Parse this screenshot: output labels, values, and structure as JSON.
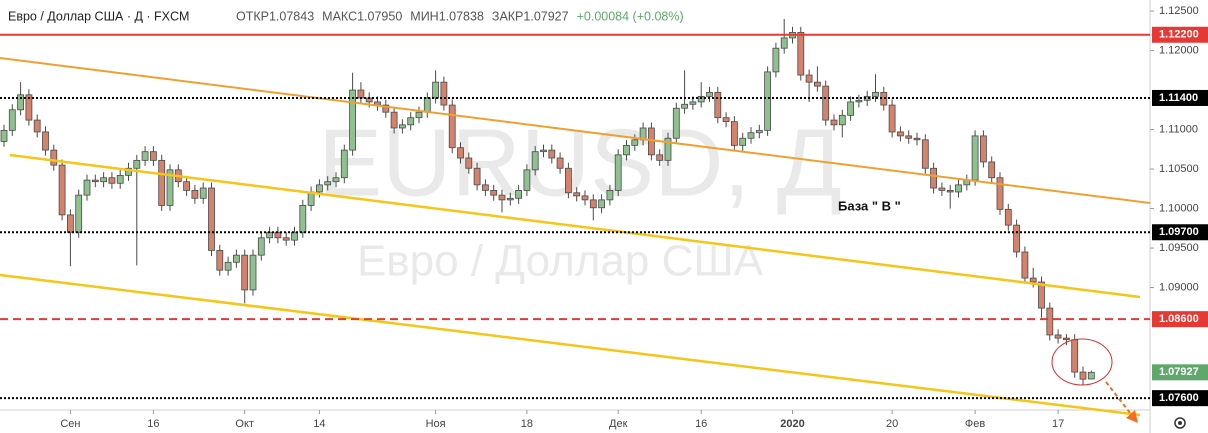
{
  "header": {
    "title": "Евро / Доллар США · Д · FXCM",
    "items": [
      "ОТКР1.07843",
      "МАКС1.07950",
      "МИН1.07838",
      "ЗАКР1.07927",
      "+0.00084 (+0.08%)"
    ]
  },
  "chart_data": {
    "type": "candlestick",
    "watermark": [
      "EURUSD, Д",
      "Евро / Доллар США"
    ],
    "annotation": "База  \" В \"",
    "up_color": "#8fc08f",
    "down_color": "#d4826c",
    "ylim": [
      1.0745,
      1.1264
    ],
    "yticks": [
      {
        "value": 1.125,
        "label": "1.12500"
      },
      {
        "value": 1.12,
        "label": "1.12000"
      },
      {
        "value": 1.11,
        "label": "1.11000"
      },
      {
        "value": 1.105,
        "label": "1.10500"
      },
      {
        "value": 1.1,
        "label": "1.10000"
      },
      {
        "value": 1.095,
        "label": "1.09500"
      },
      {
        "value": 1.09,
        "label": "1.09000"
      }
    ],
    "levels": [
      {
        "value": 1.122,
        "label": "1.12200",
        "color": "#e53935",
        "style": "solid"
      },
      {
        "value": 1.114,
        "label": "1.11400",
        "color": "#000000",
        "style": "dotted"
      },
      {
        "value": 1.097,
        "label": "1.09700",
        "color": "#000000",
        "style": "dotted"
      },
      {
        "value": 1.086,
        "label": "1.08600",
        "color": "#e53935",
        "style": "dashed"
      },
      {
        "value": 1.076,
        "label": "1.07600",
        "color": "#000000",
        "style": "dotted"
      }
    ],
    "last": {
      "value": 1.07927,
      "label": "1.07927",
      "color": "#5fa86b"
    },
    "categories": [
      null,
      null,
      null,
      null,
      null,
      null,
      null,
      null,
      "Сен",
      null,
      null,
      null,
      null,
      null,
      null,
      null,
      null,
      null,
      "16",
      null,
      null,
      null,
      null,
      null,
      null,
      null,
      null,
      null,
      null,
      "Окт",
      null,
      null,
      null,
      null,
      null,
      null,
      null,
      null,
      "14",
      null,
      null,
      null,
      null,
      null,
      null,
      null,
      null,
      null,
      null,
      null,
      null,
      null,
      "Ноя",
      null,
      null,
      null,
      null,
      null,
      null,
      null,
      null,
      null,
      null,
      "18",
      null,
      null,
      null,
      null,
      null,
      null,
      null,
      null,
      null,
      null,
      "Дек",
      null,
      null,
      null,
      null,
      null,
      null,
      null,
      null,
      null,
      "16",
      null,
      null,
      null,
      null,
      null,
      null,
      null,
      null,
      null,
      null,
      "2020",
      null,
      null,
      null,
      null,
      null,
      null,
      null,
      null,
      null,
      null,
      null,
      "20",
      null,
      null,
      null,
      null,
      null,
      null,
      null,
      null,
      null,
      "Фев",
      null,
      null,
      null,
      null,
      null,
      null,
      null,
      null,
      null,
      "17",
      null,
      null,
      null,
      null
    ],
    "ohlc": [
      [
        1.1085,
        1.1106,
        1.1078,
        1.1099
      ],
      [
        1.1099,
        1.1132,
        1.1092,
        1.1125
      ],
      [
        1.1125,
        1.116,
        1.1118,
        1.1144
      ],
      [
        1.1144,
        1.1151,
        1.1105,
        1.1112
      ],
      [
        1.1112,
        1.1119,
        1.109,
        1.1097
      ],
      [
        1.1097,
        1.1104,
        1.1067,
        1.1074
      ],
      [
        1.1074,
        1.1081,
        1.1048,
        1.1055
      ],
      [
        1.1055,
        1.1062,
        1.0985,
        1.0992
      ],
      [
        1.0992,
        1.0999,
        1.0927,
        1.097
      ],
      [
        1.097,
        1.1024,
        1.0963,
        1.1017
      ],
      [
        1.1017,
        1.1043,
        1.101,
        1.1036
      ],
      [
        1.1036,
        1.1043,
        1.1027,
        1.1034
      ],
      [
        1.1034,
        1.1046,
        1.1027,
        1.1039
      ],
      [
        1.1039,
        1.1046,
        1.1025,
        1.1032
      ],
      [
        1.1032,
        1.1049,
        1.1025,
        1.1042
      ],
      [
        1.1042,
        1.1058,
        1.1035,
        1.1051
      ],
      [
        1.1051,
        1.1068,
        1.0928,
        1.1061
      ],
      [
        1.1061,
        1.1079,
        1.1054,
        1.1072
      ],
      [
        1.1072,
        1.1079,
        1.1054,
        1.1061
      ],
      [
        1.1061,
        1.1068,
        1.0997,
        1.1004
      ],
      [
        1.1004,
        1.1056,
        1.0997,
        1.1049
      ],
      [
        1.1049,
        1.1056,
        1.1027,
        1.1034
      ],
      [
        1.1034,
        1.1041,
        1.1016,
        1.1023
      ],
      [
        1.1023,
        1.103,
        1.1006,
        1.1013
      ],
      [
        1.1013,
        1.1033,
        1.1006,
        1.1026
      ],
      [
        1.1026,
        1.1033,
        1.094,
        1.0947
      ],
      [
        1.0947,
        1.0954,
        1.0915,
        1.0922
      ],
      [
        1.0922,
        1.0939,
        1.0915,
        1.0932
      ],
      [
        1.0932,
        1.0948,
        1.0925,
        1.0941
      ],
      [
        1.0941,
        1.0948,
        1.088,
        1.0897
      ],
      [
        1.0897,
        1.0948,
        1.089,
        1.0941
      ],
      [
        1.0941,
        1.097,
        1.0934,
        1.0963
      ],
      [
        1.0963,
        1.0977,
        1.0956,
        1.097
      ],
      [
        1.097,
        1.0977,
        1.0956,
        1.0963
      ],
      [
        1.0963,
        1.097,
        1.0953,
        1.096
      ],
      [
        1.096,
        1.0977,
        1.0953,
        1.097
      ],
      [
        1.097,
        1.1011,
        1.0963,
        1.1004
      ],
      [
        1.1004,
        1.1028,
        1.0997,
        1.1021
      ],
      [
        1.1021,
        1.1037,
        1.1014,
        1.103
      ],
      [
        1.103,
        1.1041,
        1.1023,
        1.1034
      ],
      [
        1.1034,
        1.1046,
        1.1027,
        1.1039
      ],
      [
        1.1039,
        1.1081,
        1.1032,
        1.1074
      ],
      [
        1.1074,
        1.1172,
        1.1067,
        1.115
      ],
      [
        1.115,
        1.116,
        1.1133,
        1.114
      ],
      [
        1.114,
        1.1147,
        1.1128,
        1.1135
      ],
      [
        1.1135,
        1.1142,
        1.1124,
        1.1131
      ],
      [
        1.1131,
        1.1138,
        1.1115,
        1.1122
      ],
      [
        1.1122,
        1.1129,
        1.1095,
        1.1102
      ],
      [
        1.1102,
        1.1113,
        1.1095,
        1.1106
      ],
      [
        1.1106,
        1.1122,
        1.1099,
        1.1115
      ],
      [
        1.1115,
        1.1129,
        1.1108,
        1.1122
      ],
      [
        1.1122,
        1.1147,
        1.1115,
        1.114
      ],
      [
        1.114,
        1.1175,
        1.1133,
        1.116
      ],
      [
        1.116,
        1.1167,
        1.1124,
        1.1131
      ],
      [
        1.1131,
        1.1138,
        1.107,
        1.1077
      ],
      [
        1.1077,
        1.1084,
        1.1057,
        1.1064
      ],
      [
        1.1064,
        1.1071,
        1.1044,
        1.1051
      ],
      [
        1.1051,
        1.1058,
        1.1023,
        1.103
      ],
      [
        1.103,
        1.1037,
        1.1016,
        1.1023
      ],
      [
        1.1023,
        1.103,
        1.101,
        1.1017
      ],
      [
        1.1017,
        1.1024,
        1.0995,
        1.1011
      ],
      [
        1.1011,
        1.102,
        1.1004,
        1.1013
      ],
      [
        1.1013,
        1.103,
        1.1006,
        1.1023
      ],
      [
        1.1023,
        1.1056,
        1.1016,
        1.1049
      ],
      [
        1.1049,
        1.1079,
        1.1042,
        1.1072
      ],
      [
        1.1072,
        1.1081,
        1.1065,
        1.1074
      ],
      [
        1.1074,
        1.1081,
        1.1057,
        1.1064
      ],
      [
        1.1064,
        1.1071,
        1.1044,
        1.1051
      ],
      [
        1.1051,
        1.1058,
        1.1013,
        1.102
      ],
      [
        1.102,
        1.1027,
        1.1009,
        1.1016
      ],
      [
        1.1016,
        1.1023,
        1.1004,
        1.1011
      ],
      [
        1.1011,
        1.1018,
        1.0985,
        1.1001
      ],
      [
        1.1001,
        1.1018,
        1.0994,
        1.1011
      ],
      [
        1.1011,
        1.103,
        1.1004,
        1.1023
      ],
      [
        1.1023,
        1.1075,
        1.1016,
        1.1068
      ],
      [
        1.1068,
        1.1087,
        1.1061,
        1.108
      ],
      [
        1.108,
        1.1094,
        1.1073,
        1.1087
      ],
      [
        1.1087,
        1.1109,
        1.108,
        1.1102
      ],
      [
        1.1102,
        1.1109,
        1.1061,
        1.1068
      ],
      [
        1.1068,
        1.1075,
        1.1054,
        1.1061
      ],
      [
        1.1061,
        1.1096,
        1.1054,
        1.1089
      ],
      [
        1.1089,
        1.1134,
        1.1082,
        1.1127
      ],
      [
        1.1127,
        1.1175,
        1.112,
        1.1132
      ],
      [
        1.1132,
        1.1142,
        1.1125,
        1.1135
      ],
      [
        1.1135,
        1.116,
        1.1128,
        1.1142
      ],
      [
        1.1142,
        1.1154,
        1.1135,
        1.1147
      ],
      [
        1.1147,
        1.1154,
        1.1108,
        1.1115
      ],
      [
        1.1115,
        1.1122,
        1.1103,
        1.111
      ],
      [
        1.111,
        1.1117,
        1.1073,
        1.108
      ],
      [
        1.108,
        1.1096,
        1.1073,
        1.1089
      ],
      [
        1.1089,
        1.1103,
        1.1082,
        1.1096
      ],
      [
        1.1096,
        1.1106,
        1.1089,
        1.1099
      ],
      [
        1.1099,
        1.118,
        1.1092,
        1.1173
      ],
      [
        1.1173,
        1.121,
        1.1166,
        1.1203
      ],
      [
        1.1203,
        1.124,
        1.1196,
        1.1216
      ],
      [
        1.1216,
        1.123,
        1.1209,
        1.1223
      ],
      [
        1.1223,
        1.123,
        1.1162,
        1.1169
      ],
      [
        1.1169,
        1.1176,
        1.1135,
        1.116
      ],
      [
        1.116,
        1.118,
        1.1148,
        1.1155
      ],
      [
        1.1155,
        1.1162,
        1.1105,
        1.1112
      ],
      [
        1.1112,
        1.1119,
        1.1099,
        1.1106
      ],
      [
        1.1106,
        1.1125,
        1.109,
        1.1118
      ],
      [
        1.1118,
        1.1142,
        1.1111,
        1.1135
      ],
      [
        1.1135,
        1.1144,
        1.1128,
        1.1137
      ],
      [
        1.1137,
        1.1149,
        1.113,
        1.1142
      ],
      [
        1.1142,
        1.117,
        1.1135,
        1.1147
      ],
      [
        1.1147,
        1.1154,
        1.1124,
        1.1131
      ],
      [
        1.1131,
        1.1138,
        1.109,
        1.1097
      ],
      [
        1.1097,
        1.1104,
        1.1085,
        1.1092
      ],
      [
        1.1092,
        1.1099,
        1.1082,
        1.1089
      ],
      [
        1.1089,
        1.1096,
        1.108,
        1.1087
      ],
      [
        1.1087,
        1.1094,
        1.1044,
        1.1051
      ],
      [
        1.1051,
        1.1058,
        1.1019,
        1.1026
      ],
      [
        1.1026,
        1.1033,
        1.1016,
        1.1023
      ],
      [
        1.1023,
        1.103,
        1.1,
        1.1021
      ],
      [
        1.1021,
        1.1037,
        1.1014,
        1.103
      ],
      [
        1.103,
        1.1043,
        1.1023,
        1.1036
      ],
      [
        1.1036,
        1.1099,
        1.1029,
        1.1092
      ],
      [
        1.1092,
        1.1099,
        1.1052,
        1.1059
      ],
      [
        1.1059,
        1.1066,
        1.1032,
        1.1039
      ],
      [
        1.1039,
        1.1046,
        1.0992,
        1.0999
      ],
      [
        1.0999,
        1.1006,
        1.0972,
        1.0979
      ],
      [
        1.0979,
        1.0986,
        1.0938,
        1.0945
      ],
      [
        1.0945,
        1.0952,
        1.0905,
        1.0912
      ],
      [
        1.0912,
        1.0925,
        1.09,
        1.0907
      ],
      [
        1.0907,
        1.0914,
        1.0862,
        1.0874
      ],
      [
        1.0874,
        1.0881,
        1.0833,
        1.084
      ],
      [
        1.084,
        1.0847,
        1.0829,
        1.0836
      ],
      [
        1.0836,
        1.0841,
        1.0827,
        1.0834
      ],
      [
        1.0834,
        1.0841,
        1.0786,
        1.0793
      ],
      [
        1.0793,
        1.08,
        1.0777,
        1.0784
      ],
      [
        1.07843,
        1.0795,
        1.07838,
        1.07927
      ]
    ]
  }
}
